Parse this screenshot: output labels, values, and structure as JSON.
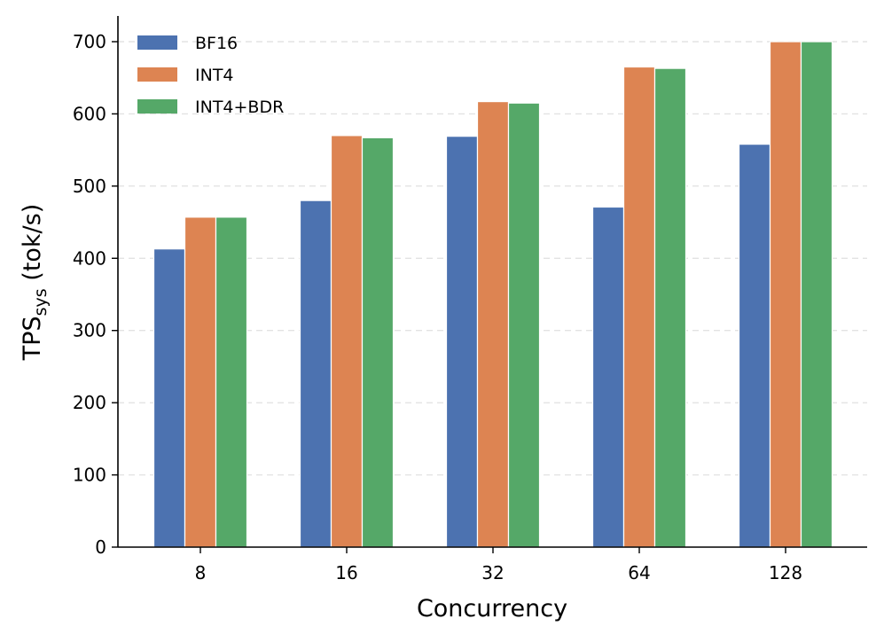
{
  "chart_data": {
    "type": "bar",
    "categories": [
      "8",
      "16",
      "32",
      "64",
      "128"
    ],
    "series": [
      {
        "name": "BF16",
        "color": "#4c72b0",
        "values": [
          413,
          480,
          569,
          471,
          558
        ]
      },
      {
        "name": "INT4",
        "color": "#dd8452",
        "values": [
          457,
          570,
          617,
          665,
          700
        ]
      },
      {
        "name": "INT4+BDR",
        "color": "#55a868",
        "values": [
          457,
          567,
          615,
          663,
          700
        ]
      }
    ],
    "xlabel": "Concurrency",
    "ylabel": {
      "main": "TPS",
      "sub": "sys",
      "suffix": " (tok/s)"
    },
    "ylim": [
      0,
      700
    ],
    "yticks": [
      "0",
      "100",
      "200",
      "300",
      "400",
      "500",
      "600",
      "700"
    ],
    "grid": "horizontal dashed",
    "legend_position": "top-left"
  }
}
